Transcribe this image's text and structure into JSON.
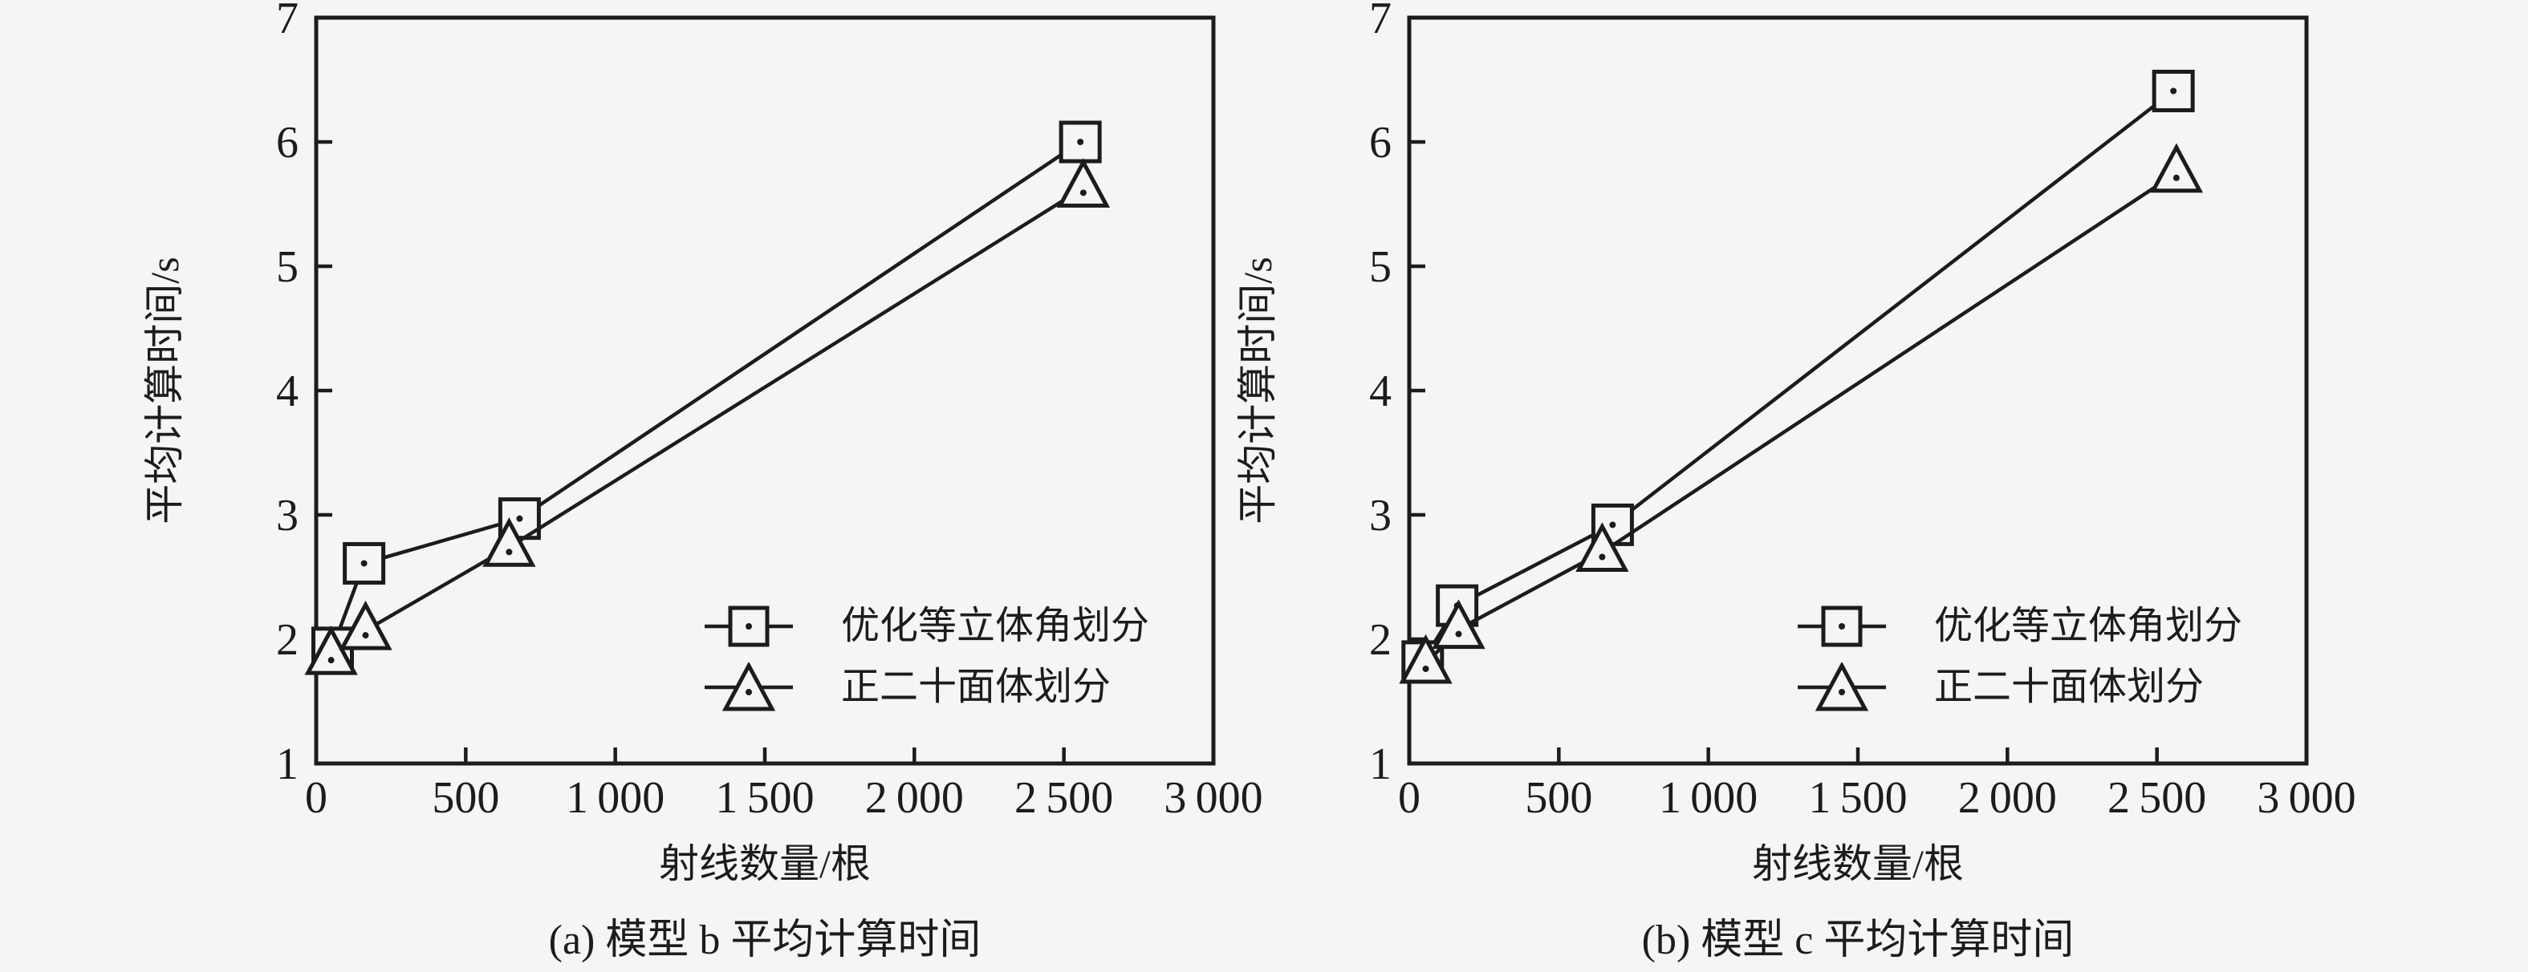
{
  "page": {
    "background": "#f5f5f5",
    "ink": "#1c1c1c"
  },
  "chart_data": [
    {
      "type": "line",
      "caption": "(a) 模型 b 平均计算时间",
      "xlabel": "射线数量/根",
      "ylabel": "平均计算时间/s",
      "xlim": [
        0,
        3000
      ],
      "ylim": [
        1,
        7
      ],
      "grid": false,
      "legend_position": "inside-middle-right",
      "xticks": {
        "values": [
          0,
          500,
          1000,
          1500,
          2000,
          2500,
          3000
        ],
        "labels": [
          "0",
          "500",
          "1 000",
          "1 500",
          "2 000",
          "2 500",
          "3 000"
        ]
      },
      "yticks": {
        "values": [
          1,
          2,
          3,
          4,
          5,
          6,
          7
        ],
        "labels": [
          "1",
          "2",
          "3",
          "4",
          "5",
          "6",
          "7"
        ]
      },
      "series": [
        {
          "name": "优化等立体角划分",
          "marker": "square",
          "x": [
            55,
            160,
            680,
            2555
          ],
          "y": [
            1.93,
            2.61,
            2.97,
            6.0
          ]
        },
        {
          "name": "正二十面体划分",
          "marker": "triangle",
          "x": [
            50,
            165,
            645,
            2565
          ],
          "y": [
            1.87,
            2.07,
            2.74,
            5.63
          ]
        }
      ]
    },
    {
      "type": "line",
      "caption": "(b) 模型 c 平均计算时间",
      "xlabel": "射线数量/根",
      "ylabel": "平均计算时间/s",
      "xlim": [
        0,
        3000
      ],
      "ylim": [
        1,
        7
      ],
      "grid": false,
      "legend_position": "inside-middle-right",
      "xticks": {
        "values": [
          0,
          500,
          1000,
          1500,
          2000,
          2500,
          3000
        ],
        "labels": [
          "0",
          "500",
          "1 000",
          "1 500",
          "2 000",
          "2 500",
          "3 000"
        ]
      },
      "yticks": {
        "values": [
          1,
          2,
          3,
          4,
          5,
          6,
          7
        ],
        "labels": [
          "1",
          "2",
          "3",
          "4",
          "5",
          "6",
          "7"
        ]
      },
      "series": [
        {
          "name": "优化等立体角划分",
          "marker": "square",
          "x": [
            45,
            160,
            680,
            2555
          ],
          "y": [
            1.82,
            2.27,
            2.92,
            6.41
          ]
        },
        {
          "name": "正二十面体划分",
          "marker": "triangle",
          "x": [
            55,
            165,
            645,
            2565
          ],
          "y": [
            1.8,
            2.08,
            2.7,
            5.75
          ]
        }
      ]
    }
  ]
}
